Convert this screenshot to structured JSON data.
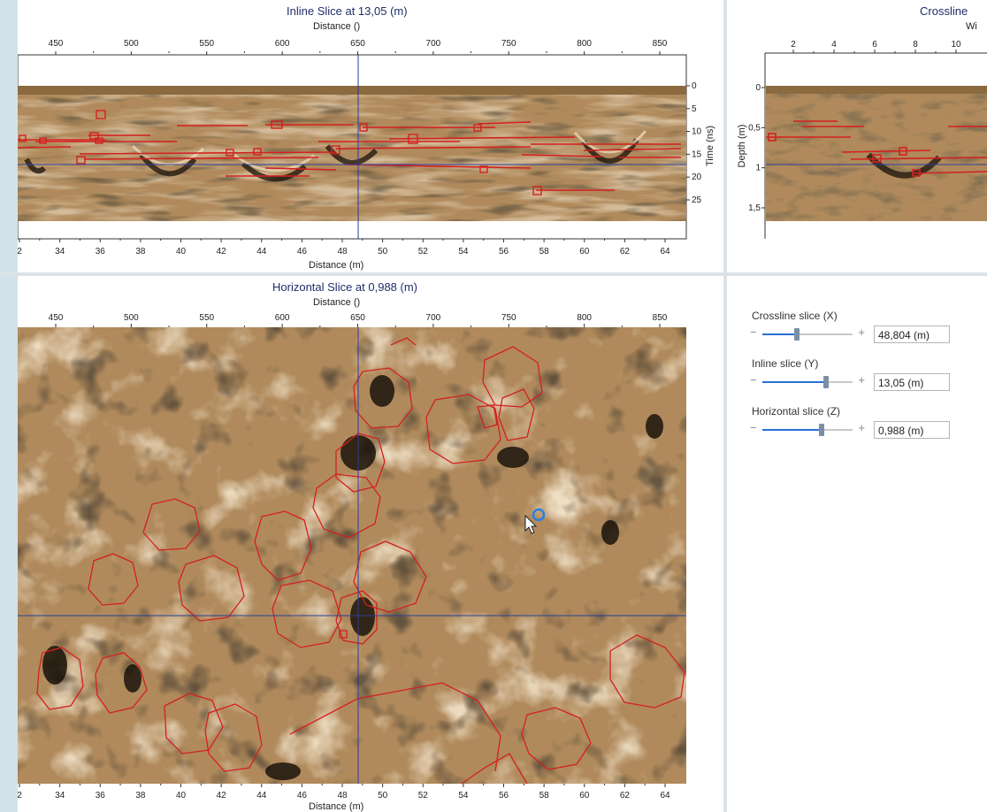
{
  "inline_slice": {
    "title": "Inline Slice at 13,05 (m)",
    "top_axis_label": "Distance ()",
    "top_ticks": [
      "450",
      "500",
      "550",
      "600",
      "650",
      "700",
      "750",
      "800",
      "850"
    ],
    "bottom_axis_label": "Distance (m)",
    "bottom_ticks": [
      "2",
      "34",
      "36",
      "38",
      "40",
      "42",
      "44",
      "46",
      "48",
      "50",
      "52",
      "54",
      "56",
      "58",
      "60",
      "62",
      "64"
    ],
    "right_axis_label": "Time (ns)",
    "right_ticks": [
      "0",
      "5",
      "10",
      "15",
      "20",
      "25"
    ]
  },
  "crossline_slice": {
    "title": "Crossline",
    "top_axis_label": "Wi",
    "top_ticks": [
      "2",
      "4",
      "6",
      "8",
      "10"
    ],
    "left_axis_label": "Depth (m)",
    "left_ticks": [
      "0",
      "0,5",
      "1",
      "1,5"
    ]
  },
  "horizontal_slice": {
    "title": "Horizontal Slice at 0,988 (m)",
    "top_axis_label": "Distance ()",
    "top_ticks": [
      "450",
      "500",
      "550",
      "600",
      "650",
      "700",
      "750",
      "800",
      "850"
    ],
    "bottom_axis_label": "Distance (m)",
    "bottom_ticks": [
      "2",
      "34",
      "36",
      "38",
      "40",
      "42",
      "44",
      "46",
      "48",
      "50",
      "52",
      "54",
      "56",
      "58",
      "60",
      "62",
      "64"
    ]
  },
  "controls": {
    "crossline": {
      "label": "Crossline slice (X)",
      "value": "48,804 (m)",
      "position": 0.38
    },
    "inline": {
      "label": "Inline slice (Y)",
      "value": "13,05 (m)",
      "position": 0.71
    },
    "horizontal": {
      "label": "Horizontal slice (Z)",
      "value": "0,988 (m)",
      "position": 0.66
    },
    "minus_symbol": "−",
    "plus_symbol": "+"
  },
  "colors": {
    "title": "#1f2d6b",
    "radar_base": "#b08a5c",
    "annotation": "#d42020",
    "crosshair": "#2a3f9a",
    "slider_fill": "#2b6fd6"
  }
}
